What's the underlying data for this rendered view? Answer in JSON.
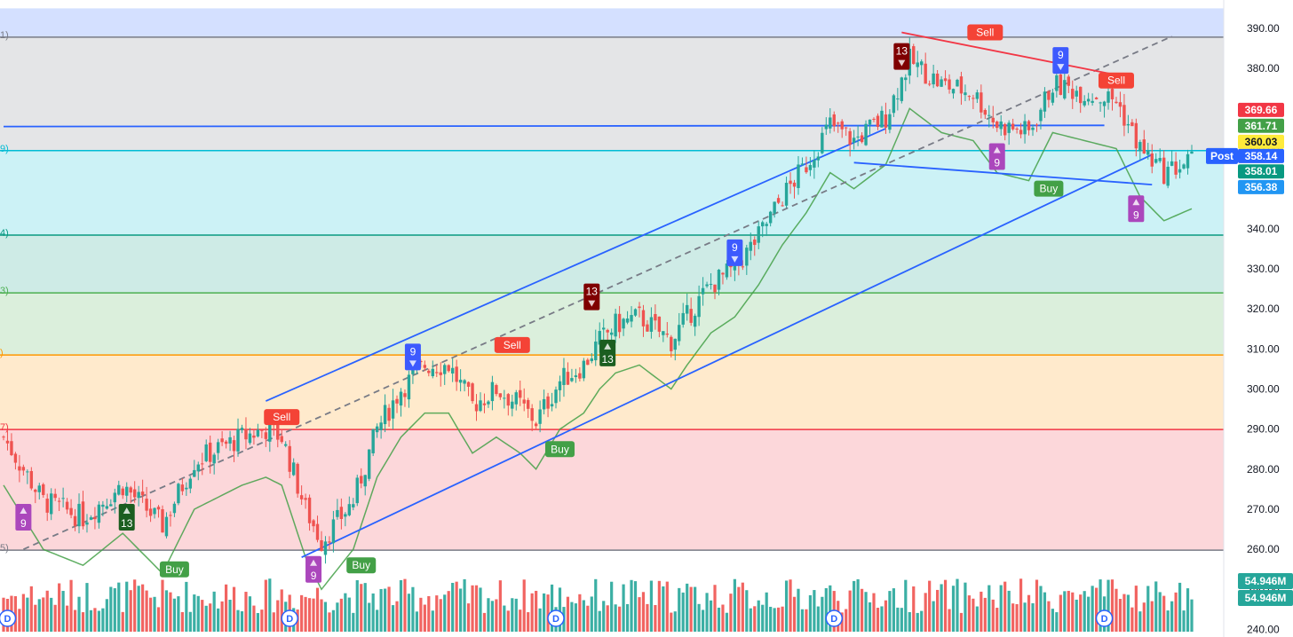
{
  "chart_data": {
    "type": "candlestick",
    "price_axis": {
      "min": 240,
      "max": 390,
      "ticks": [
        "390.00",
        "380.00",
        "370.00",
        "360.00",
        "350.00",
        "340.00",
        "330.00",
        "320.00",
        "310.00",
        "300.00",
        "290.00",
        "280.00",
        "270.00",
        "260.00",
        "250.00",
        "240.00"
      ]
    },
    "fib_levels": [
      {
        "price": 387.8,
        "label": "1)",
        "color": "#787b86"
      },
      {
        "price": 359.5,
        "label": "9)",
        "color": "#00bcd4"
      },
      {
        "price": 338.4,
        "label": "4)",
        "color": "#089981"
      },
      {
        "price": 324.0,
        "label": "3)",
        "color": "#4caf50"
      },
      {
        "price": 308.5,
        "label": ")",
        "color": "#ff9800"
      },
      {
        "price": 289.9,
        "label": "7)",
        "color": "#f23645"
      },
      {
        "price": 259.8,
        "label": "5)",
        "color": "#787b86"
      }
    ],
    "fib_fills": [
      {
        "top": 395,
        "bottom": 387.8,
        "color": "rgba(41,98,255,0.20)"
      },
      {
        "top": 387.8,
        "bottom": 359.5,
        "color": "rgba(120,123,134,0.20)"
      },
      {
        "top": 359.5,
        "bottom": 338.4,
        "color": "rgba(0,188,212,0.20)"
      },
      {
        "top": 338.4,
        "bottom": 324.0,
        "color": "rgba(8,153,129,0.20)"
      },
      {
        "top": 324.0,
        "bottom": 308.5,
        "color": "rgba(76,175,80,0.20)"
      },
      {
        "top": 308.5,
        "bottom": 289.9,
        "color": "rgba(255,152,0,0.20)"
      },
      {
        "top": 289.9,
        "bottom": 259.8,
        "color": "rgba(242,54,69,0.20)"
      }
    ],
    "price_badges": [
      {
        "label": "369.66",
        "price": 369.66,
        "bg": "#f23645",
        "fg": "#ffffff"
      },
      {
        "label": "361.71",
        "price": 365.7,
        "bg": "#43a047",
        "fg": "#ffffff"
      },
      {
        "label": "360.03",
        "price": 361.7,
        "bg": "#ffeb3b",
        "fg": "#131722"
      },
      {
        "label": "358.14",
        "price": 358.14,
        "bg": "#2962ff",
        "fg": "#ffffff"
      },
      {
        "label": "358.01",
        "price": 354.3,
        "bg": "#089981",
        "fg": "#ffffff"
      },
      {
        "label": "356.38",
        "price": 350.4,
        "bg": "#2196f3",
        "fg": "#ffffff"
      }
    ],
    "post_label": "Post",
    "volume_badges": [
      "54.946M",
      "54.946M"
    ],
    "signals": [
      {
        "text": "Sell",
        "kind": "sell",
        "t": 70,
        "price": 293
      },
      {
        "text": "Buy",
        "kind": "buy",
        "t": 43,
        "price": 255
      },
      {
        "text": "Buy",
        "kind": "buy",
        "t": 90,
        "price": 256
      },
      {
        "text": "Sell",
        "kind": "sell",
        "t": 128,
        "price": 311
      },
      {
        "text": "Buy",
        "kind": "buy",
        "t": 140,
        "price": 285
      },
      {
        "text": "Sell",
        "kind": "sell",
        "t": 247,
        "price": 389
      },
      {
        "text": "Buy",
        "kind": "buy",
        "t": 263,
        "price": 350
      },
      {
        "text": "Sell",
        "kind": "sell",
        "t": 280,
        "price": 377
      }
    ],
    "td_counts": [
      {
        "text": "9",
        "dir": "up",
        "color": "#ab47bc",
        "t": 5,
        "price": 268
      },
      {
        "text": "13",
        "dir": "up",
        "color": "#1b5e20",
        "t": 31,
        "price": 268
      },
      {
        "text": "9",
        "dir": "up",
        "color": "#ab47bc",
        "t": 78,
        "price": 255
      },
      {
        "text": "9",
        "dir": "down",
        "color": "#3d5afe",
        "t": 103,
        "price": 308
      },
      {
        "text": "13",
        "dir": "down",
        "color": "#7f0000",
        "t": 148,
        "price": 323
      },
      {
        "text": "13",
        "dir": "up",
        "color": "#1b5e20",
        "t": 152,
        "price": 309
      },
      {
        "text": "9",
        "dir": "down",
        "color": "#3d5afe",
        "t": 184,
        "price": 334
      },
      {
        "text": "13",
        "dir": "down",
        "color": "#7f0000",
        "t": 226,
        "price": 383
      },
      {
        "text": "9",
        "dir": "up",
        "color": "#ab47bc",
        "t": 250,
        "price": 358
      },
      {
        "text": "9",
        "dir": "down",
        "color": "#3d5afe",
        "t": 266,
        "price": 382
      },
      {
        "text": "9",
        "dir": "up",
        "color": "#ab47bc",
        "t": 285,
        "price": 345
      }
    ],
    "dividend_markers": [
      "D",
      "D",
      "D",
      "D",
      "D"
    ],
    "dividend_t": [
      1,
      72,
      139,
      209,
      277
    ],
    "trend_lines": [
      {
        "t1": 66,
        "p1": 297,
        "t2": 222,
        "p2": 365,
        "color": "#2962ff"
      },
      {
        "t1": 75,
        "p1": 258,
        "t2": 289,
        "p2": 358.5,
        "color": "#2962ff"
      },
      {
        "t1": 5,
        "p1": 260,
        "t2": 294,
        "p2": 388,
        "color": "#787b86",
        "dash": true
      },
      {
        "t1": 0,
        "p1": 365.5,
        "t2": 277,
        "p2": 365.8,
        "color": "#2962ff"
      },
      {
        "t1": 214,
        "p1": 356.5,
        "t2": 289,
        "p2": 351,
        "color": "#2962ff"
      },
      {
        "t1": 226,
        "p1": 389,
        "t2": 282,
        "p2": 378,
        "color": "#f23645"
      }
    ]
  }
}
